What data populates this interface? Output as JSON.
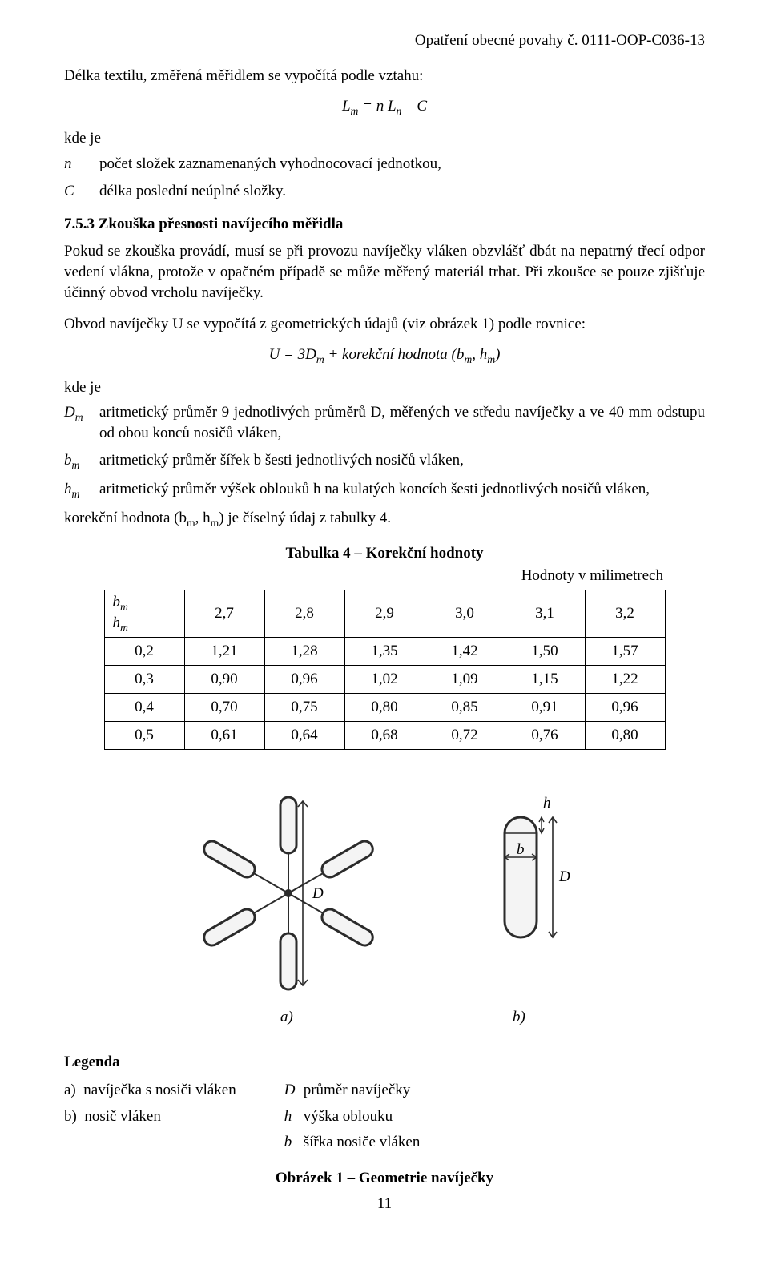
{
  "header_right": "Opatření obecné povahy č. 0111-OOP-C036-13",
  "intro_line": "Délka textilu, změřená měřidlem se vypočítá podle vztahu:",
  "formula1_html": "L<span class='sub'>m</span> = n L<span class='sub'>n</span> – C",
  "kde_je": "kde je",
  "defs1": [
    {
      "sym_html": "n",
      "txt": "počet složek zaznamenaných vyhodnocovací jednotkou,"
    },
    {
      "sym_html": "C",
      "txt": "délka poslední neúplné složky."
    }
  ],
  "sec_num_title": "7.5.3  Zkouška přesnosti navíjecího měřidla",
  "para_753": "Pokud se zkouška provádí, musí se při provozu navíječky vláken obzvlášť dbát na nepatrný třecí odpor vedení vlákna, protože v opačném případě se může měřený materiál trhat. Při zkoušce se pouze zjišťuje účinný obvod vrcholu navíječky.",
  "para_obvod": "Obvod navíječky U se vypočítá z geometrických údajů (viz obrázek 1) podle rovnice:",
  "formula2_html": "U = 3D<span class='sub'>m</span>  + korekční hodnota (b<span class='sub'>m</span>, h<span class='sub'>m</span>)",
  "defs2": [
    {
      "sym_html": "D<span class='sub'>m</span>",
      "txt": "aritmetický průměr 9 jednotlivých průměrů D, měřených ve středu navíječky a ve 40 mm odstupu od obou konců nosičů vláken,"
    },
    {
      "sym_html": "b<span class='sub'>m</span>",
      "txt": "aritmetický průměr šířek b šesti jednotlivých nosičů vláken,"
    },
    {
      "sym_html": "h<span class='sub'>m</span>",
      "txt": "aritmetický průměr výšek oblouků h na kulatých koncích šesti jednotlivých nosičů vláken,"
    }
  ],
  "korekcni_line_html": "korekční hodnota (b<span class='sub'>m</span>, h<span class='sub'>m</span>) je číselný údaj z tabulky 4.",
  "table_title": "Tabulka 4 – Korekční hodnoty",
  "table_units": "Hodnoty v milimetrech",
  "table": {
    "col_headers": [
      "2,7",
      "2,8",
      "2,9",
      "3,0",
      "3,1",
      "3,2"
    ],
    "row_headers": [
      "0,2",
      "0,3",
      "0,4",
      "0,5"
    ],
    "rows": [
      [
        "1,21",
        "1,28",
        "1,35",
        "1,42",
        "1,50",
        "1,57"
      ],
      [
        "0,90",
        "0,96",
        "1,02",
        "1,09",
        "1,15",
        "1,22"
      ],
      [
        "0,70",
        "0,75",
        "0,80",
        "0,85",
        "0,91",
        "0,96"
      ],
      [
        "0,61",
        "0,64",
        "0,68",
        "0,72",
        "0,76",
        "0,80"
      ]
    ],
    "corner_top_html": "b<span class='sub'>m</span>",
    "corner_bot_html": "h<span class='sub'>m</span>"
  },
  "figure": {
    "label_D": "D",
    "label_h": "h",
    "label_b": "b",
    "label_a": "a)",
    "label_b_part": "b)"
  },
  "legend_title": "Legenda",
  "legend_left": [
    {
      "bullet": "a)",
      "txt": "navíječka s nosiči vláken"
    },
    {
      "bullet": "b)",
      "txt": "nosič vláken"
    }
  ],
  "legend_right": [
    {
      "sym": "D",
      "txt": "průměr navíječky"
    },
    {
      "sym": "h",
      "txt": "výška oblouku"
    },
    {
      "sym": "b",
      "txt": "šířka nosiče vláken"
    }
  ],
  "fig_title": "Obrázek 1 – Geometrie navíječky",
  "page_number": "11",
  "colors": {
    "text": "#000000",
    "bg": "#ffffff",
    "border": "#000000",
    "svg_stroke": "#2b2b2b",
    "svg_fill": "#f4f4f4"
  }
}
